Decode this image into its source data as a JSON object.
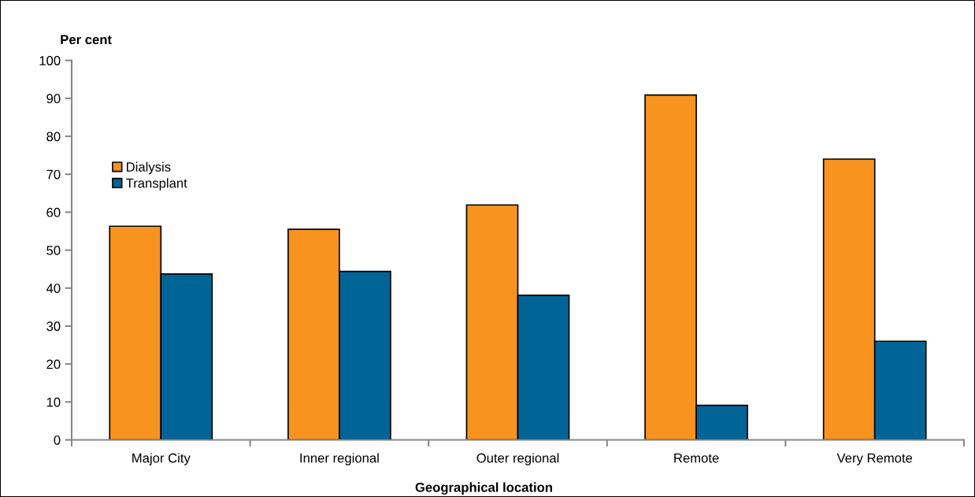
{
  "chart_data": {
    "type": "bar",
    "xlabel": "Geographical location",
    "ylabel": "Per cent",
    "categories": [
      "Major City",
      "Inner regional",
      "Outer regional",
      "Remote",
      "Very Remote"
    ],
    "series": [
      {
        "name": "Dialysis",
        "color": "#f7931e",
        "values": [
          56.3,
          55.5,
          61.9,
          90.9,
          74.0
        ]
      },
      {
        "name": "Transplant",
        "color": "#006496",
        "values": [
          43.7,
          44.4,
          38.1,
          9.1,
          26.0
        ]
      }
    ],
    "ylim": [
      0,
      100
    ],
    "yticks": [
      0,
      10,
      20,
      30,
      40,
      50,
      60,
      70,
      80,
      90,
      100
    ],
    "legend": "left",
    "grid": false
  }
}
